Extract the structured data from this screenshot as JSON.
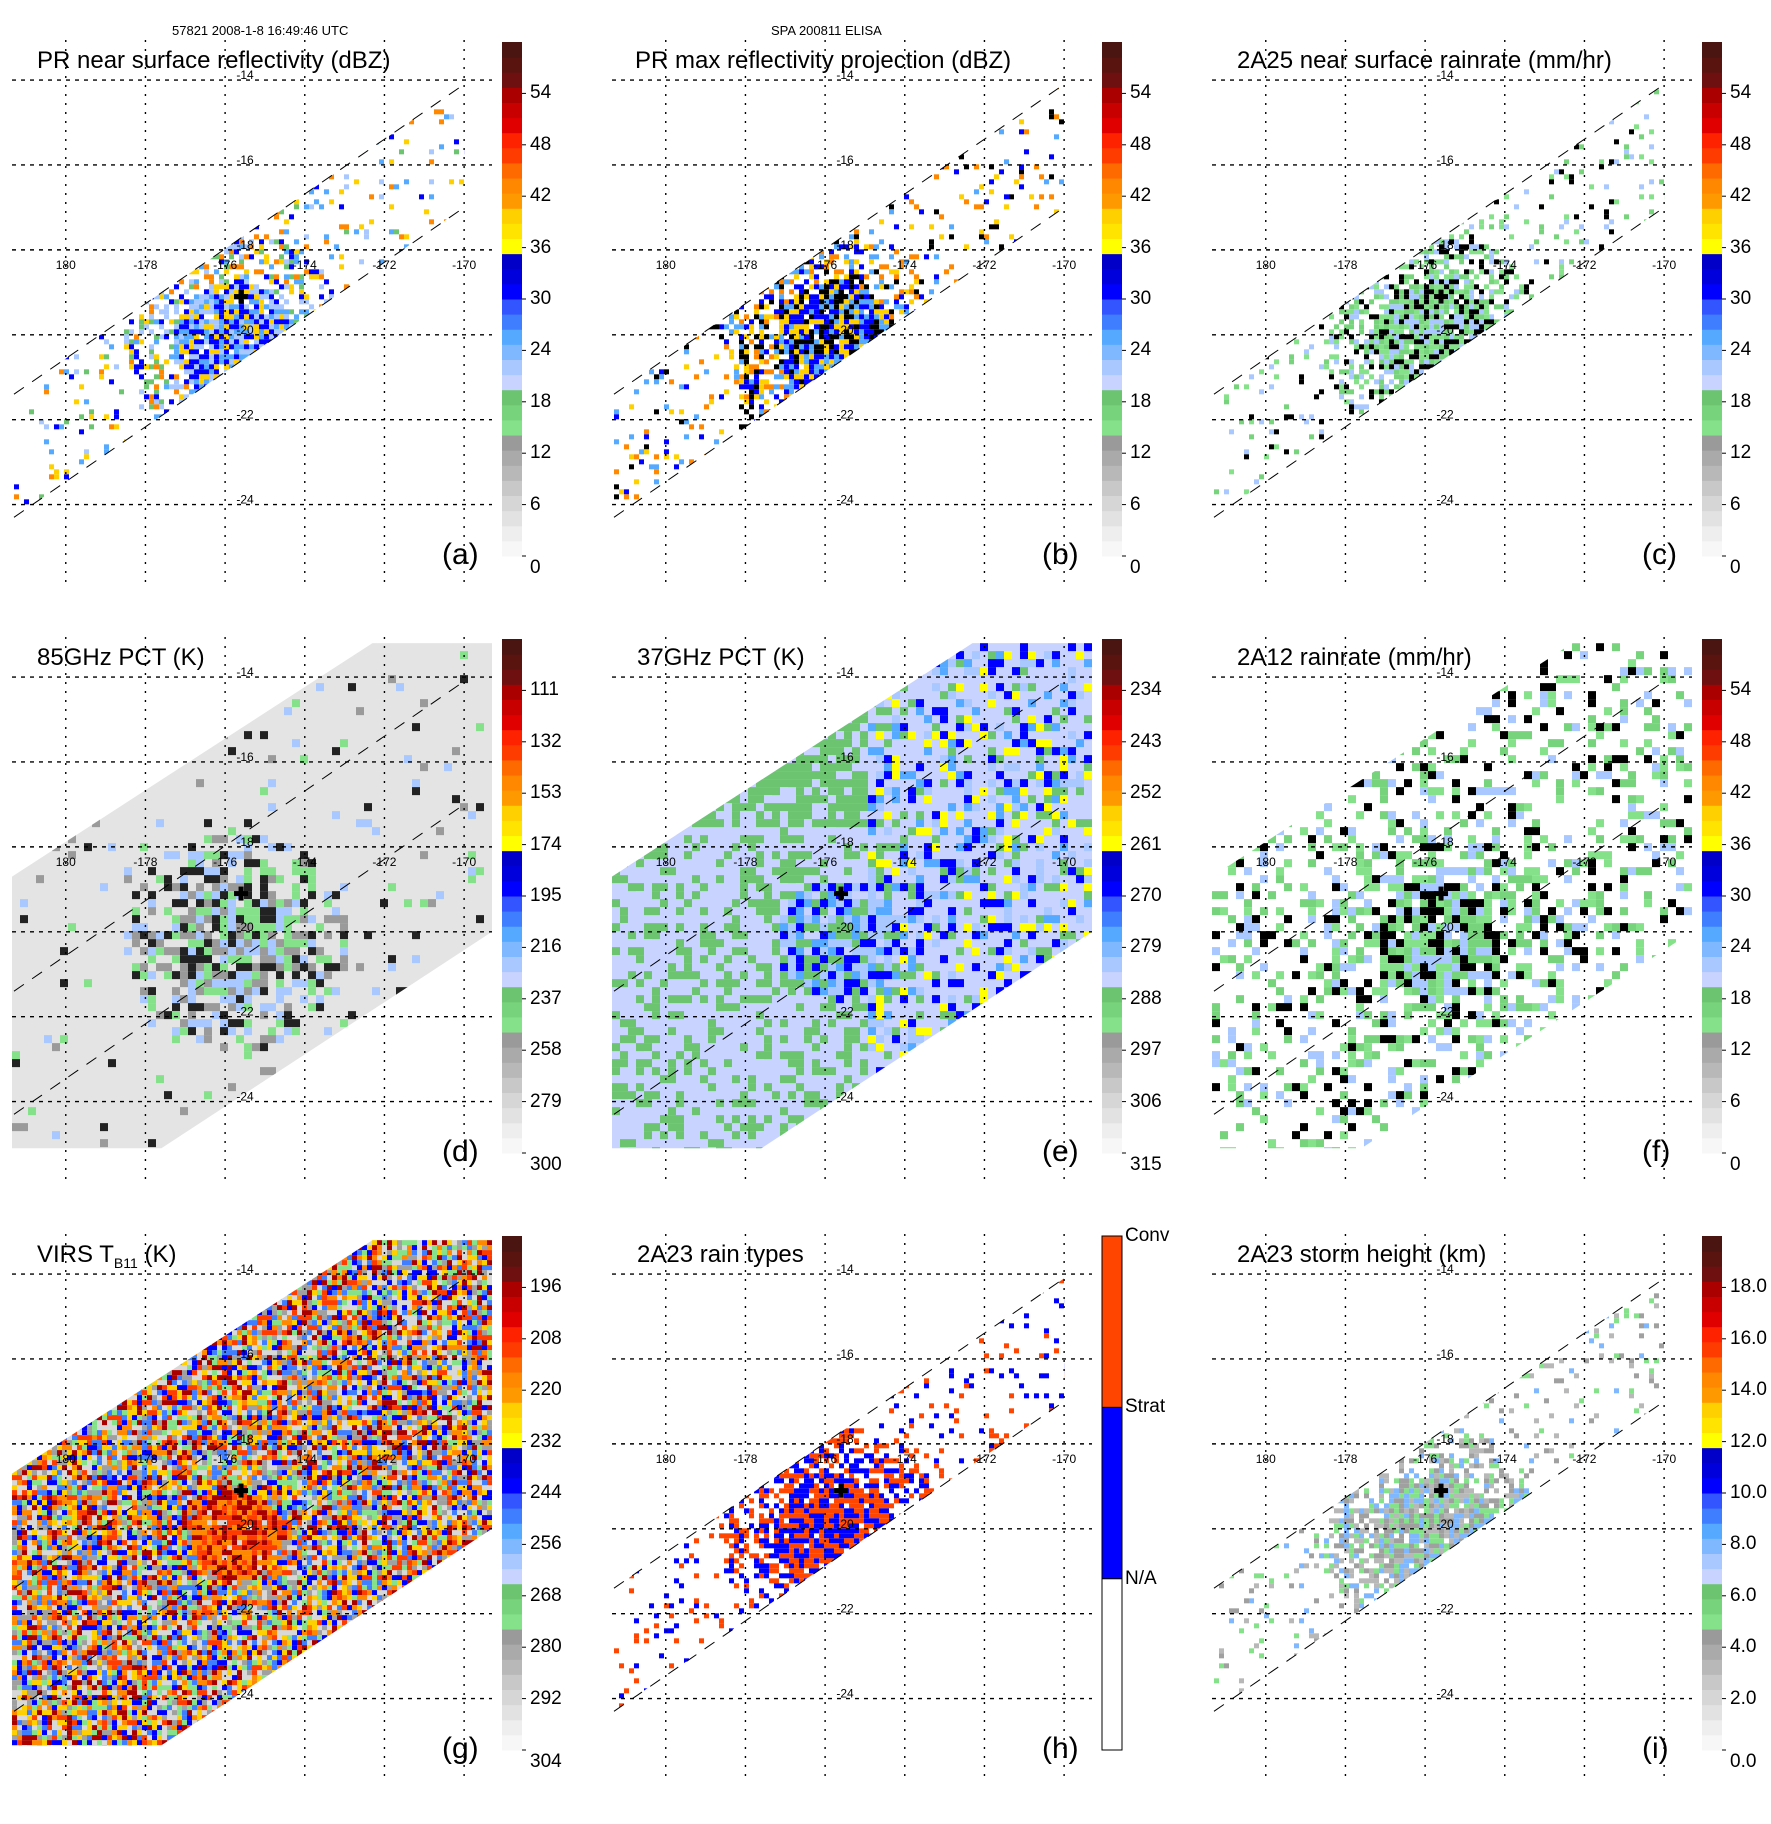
{
  "header": {
    "left": "57821 2008-1-8 16:49:46 UTC",
    "center": "SPA 200811 ELISA"
  },
  "chart_data": [
    {
      "type": "heatmap",
      "id": "a",
      "title": "PR near surface reflectivity (dBZ)",
      "panel_label": "(a)",
      "swath": "PR",
      "colorbar": {
        "ticks": [
          "0",
          "6",
          "12",
          "18",
          "24",
          "30",
          "36",
          "42",
          "48",
          "54"
        ],
        "range": [
          0,
          60
        ],
        "unit": "dBZ"
      },
      "lon_ticks": [
        "180",
        "-178",
        "-176",
        "-174",
        "-172",
        "-170"
      ],
      "lat_ticks": [
        "-14",
        "-16",
        "-18",
        "-20",
        "-22",
        "-24"
      ],
      "storm_center": {
        "lon": -175.6,
        "lat": -19.1
      }
    },
    {
      "type": "heatmap",
      "id": "b",
      "title": "PR max reflectivity projection (dBZ)",
      "panel_label": "(b)",
      "swath": "PR",
      "colorbar": {
        "ticks": [
          "0",
          "6",
          "12",
          "18",
          "24",
          "30",
          "36",
          "42",
          "48",
          "54"
        ],
        "range": [
          0,
          60
        ],
        "unit": "dBZ"
      },
      "lon_ticks": [
        "180",
        "-178",
        "-176",
        "-174",
        "-172",
        "-170"
      ],
      "lat_ticks": [
        "-14",
        "-16",
        "-18",
        "-20",
        "-22",
        "-24"
      ],
      "storm_center": {
        "lon": -175.6,
        "lat": -19.1
      }
    },
    {
      "type": "heatmap",
      "id": "c",
      "title": "2A25 near surface rainrate (mm/hr)",
      "panel_label": "(c)",
      "swath": "PR",
      "colorbar": {
        "ticks": [
          "0",
          "6",
          "12",
          "18",
          "24",
          "30",
          "36",
          "42",
          "48",
          "54"
        ],
        "range": [
          0,
          60
        ],
        "unit": "mm/hr"
      },
      "lon_ticks": [
        "180",
        "-178",
        "-176",
        "-174",
        "-172",
        "-170"
      ],
      "lat_ticks": [
        "-14",
        "-16",
        "-18",
        "-20",
        "-22",
        "-24"
      ],
      "storm_center": {
        "lon": -175.6,
        "lat": -19.1
      }
    },
    {
      "type": "heatmap",
      "id": "d",
      "title": "85GHz PCT (K)",
      "panel_label": "(d)",
      "swath": "TMI",
      "colorbar": {
        "ticks": [
          "300",
          "279",
          "258",
          "237",
          "216",
          "195",
          "174",
          "153",
          "132",
          "111"
        ],
        "range": [
          300,
          90
        ],
        "unit": "K"
      },
      "lon_ticks": [
        "180",
        "-178",
        "-176",
        "-174",
        "-172",
        "-170"
      ],
      "lat_ticks": [
        "-14",
        "-16",
        "-18",
        "-20",
        "-22",
        "-24"
      ],
      "storm_center": {
        "lon": -175.6,
        "lat": -19.1
      }
    },
    {
      "type": "heatmap",
      "id": "e",
      "title": "37GHz PCT (K)",
      "panel_label": "(e)",
      "swath": "TMI",
      "colorbar": {
        "ticks": [
          "315",
          "306",
          "297",
          "288",
          "279",
          "270",
          "261",
          "252",
          "243",
          "234"
        ],
        "range": [
          315,
          225
        ],
        "unit": "K"
      },
      "lon_ticks": [
        "180",
        "-178",
        "-176",
        "-174",
        "-172",
        "-170"
      ],
      "lat_ticks": [
        "-14",
        "-16",
        "-18",
        "-20",
        "-22",
        "-24"
      ],
      "storm_center": {
        "lon": -175.6,
        "lat": -19.1
      }
    },
    {
      "type": "heatmap",
      "id": "f",
      "title": "2A12 rainrate (mm/hr)",
      "panel_label": "(f)",
      "swath": "TMI-rain",
      "colorbar": {
        "ticks": [
          "0",
          "6",
          "12",
          "18",
          "24",
          "30",
          "36",
          "42",
          "48",
          "54"
        ],
        "range": [
          0,
          60
        ],
        "unit": "mm/hr"
      },
      "lon_ticks": [
        "180",
        "-178",
        "-176",
        "-174",
        "-172",
        "-170"
      ],
      "lat_ticks": [
        "-14",
        "-16",
        "-18",
        "-20",
        "-22",
        "-24"
      ],
      "storm_center": {
        "lon": -175.6,
        "lat": -19.1
      }
    },
    {
      "type": "heatmap",
      "id": "g",
      "title_main": "VIRS T",
      "title_sub": "B11",
      "title_tail": " (K)",
      "panel_label": "(g)",
      "swath": "VIRS",
      "colorbar": {
        "ticks": [
          "304",
          "292",
          "280",
          "268",
          "256",
          "244",
          "232",
          "220",
          "208",
          "196"
        ],
        "range": [
          304,
          184
        ],
        "unit": "K"
      },
      "lon_ticks": [
        "180",
        "-178",
        "-176",
        "-174",
        "-172",
        "-170"
      ],
      "lat_ticks": [
        "-14",
        "-16",
        "-18",
        "-20",
        "-22",
        "-24"
      ],
      "storm_center": {
        "lon": -175.6,
        "lat": -19.1
      }
    },
    {
      "type": "heatmap",
      "id": "h",
      "title": "2A23 rain types",
      "panel_label": "(h)",
      "swath": "PR",
      "colorbar": {
        "categories": [
          "N/A",
          "Strat",
          "Conv"
        ],
        "colors": [
          "#ffffff",
          "#0000ff",
          "#ff4500"
        ]
      },
      "lon_ticks": [
        "180",
        "-178",
        "-176",
        "-174",
        "-172",
        "-170"
      ],
      "lat_ticks": [
        "-14",
        "-16",
        "-18",
        "-20",
        "-22",
        "-24"
      ],
      "storm_center": {
        "lon": -175.6,
        "lat": -19.1
      }
    },
    {
      "type": "heatmap",
      "id": "i",
      "title": "2A23 storm height (km)",
      "panel_label": "(i)",
      "swath": "PR",
      "colorbar": {
        "ticks": [
          "0.0",
          "2.0",
          "4.0",
          "6.0",
          "8.0",
          "10.0",
          "12.0",
          "14.0",
          "16.0",
          "18.0"
        ],
        "range": [
          0,
          20
        ],
        "unit": "km"
      },
      "lon_ticks": [
        "180",
        "-178",
        "-176",
        "-174",
        "-172",
        "-170"
      ],
      "lat_ticks": [
        "-14",
        "-16",
        "-18",
        "-20",
        "-22",
        "-24"
      ],
      "storm_center": {
        "lon": -175.6,
        "lat": -19.1
      }
    }
  ],
  "colorscale": [
    "#f7f7f7",
    "#eeeeee",
    "#e2e2e2",
    "#d6d6d6",
    "#c8c8c8",
    "#b8b8b8",
    "#aaaaaa",
    "#9a9a9a",
    "#86e28a",
    "#78d47c",
    "#6cc470",
    "#c8d4ff",
    "#a8c8ff",
    "#7fb8ff",
    "#55aaff",
    "#3f7fff",
    "#3355ff",
    "#0000ff",
    "#0000dd",
    "#0000c8",
    "#ffff00",
    "#ffe400",
    "#ffd000",
    "#ff9900",
    "#ff8800",
    "#ff6a00",
    "#ff3c00",
    "#ff2200",
    "#e00000",
    "#c80000",
    "#aa0000",
    "#6e1010",
    "#5a1410",
    "#4a1410"
  ]
}
